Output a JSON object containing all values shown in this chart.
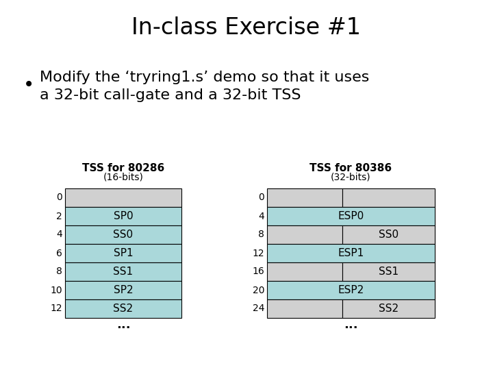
{
  "title": "In-class Exercise #1",
  "bullet_text": "Modify the ‘tryring1.s’ demo so that it uses\na 32-bit call-gate and a 32-bit TSS",
  "tss80286_title": "TSS for 80286",
  "tss80286_subtitle": "(16-bits)",
  "tss80386_title": "TSS for 80386",
  "tss80386_subtitle": "(32-bits)",
  "color_gray": "#d0d0d0",
  "color_teal": "#aad8da",
  "left_rows": [
    {
      "offset": "0",
      "label": "",
      "color": "gray"
    },
    {
      "offset": "2",
      "label": "SP0",
      "color": "teal"
    },
    {
      "offset": "4",
      "label": "SS0",
      "color": "teal"
    },
    {
      "offset": "6",
      "label": "SP1",
      "color": "teal"
    },
    {
      "offset": "8",
      "label": "SS1",
      "color": "teal"
    },
    {
      "offset": "10",
      "label": "SP2",
      "color": "teal"
    },
    {
      "offset": "12",
      "label": "SS2",
      "color": "teal"
    }
  ],
  "right_rows": [
    {
      "offset": "0",
      "label": "",
      "split": true
    },
    {
      "offset": "4",
      "label": "ESP0",
      "split": false
    },
    {
      "offset": "8",
      "label": "SS0",
      "split": true
    },
    {
      "offset": "12",
      "label": "ESP1",
      "split": false
    },
    {
      "offset": "16",
      "label": "SS1",
      "split": true
    },
    {
      "offset": "20",
      "label": "ESP2",
      "split": false
    },
    {
      "offset": "24",
      "label": "SS2",
      "split": true
    }
  ],
  "ellipsis": "...",
  "fig_width": 7.2,
  "fig_height": 5.4,
  "dpi": 100
}
